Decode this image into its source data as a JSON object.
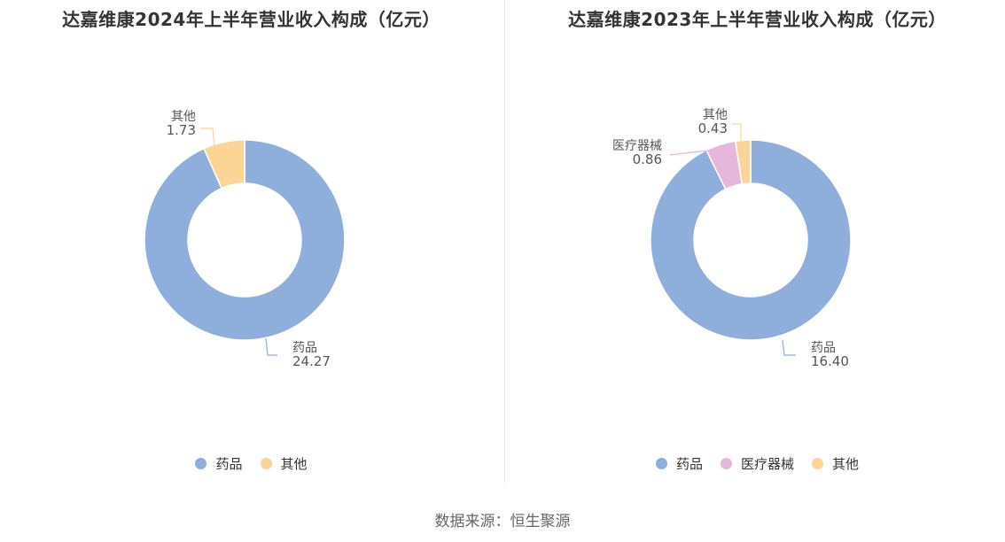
{
  "source_text": "数据来源：恒生聚源",
  "chart_data": [
    {
      "type": "pie",
      "donut": true,
      "title": "达嘉维康2024年上半年营业收入构成（亿元）",
      "unit": "亿元",
      "legend_position": "bottom",
      "slices": [
        {
          "label": "药品",
          "value": 24.27,
          "value_text": "24.27",
          "color": "#8eaedb"
        },
        {
          "label": "其他",
          "value": 1.73,
          "value_text": "1.73",
          "color": "#fbd595"
        }
      ]
    },
    {
      "type": "pie",
      "donut": true,
      "title": "达嘉维康2023年上半年营业收入构成（亿元）",
      "unit": "亿元",
      "legend_position": "bottom",
      "slices": [
        {
          "label": "药品",
          "value": 16.4,
          "value_text": "16.40",
          "color": "#8eaedb"
        },
        {
          "label": "医疗器械",
          "value": 0.86,
          "value_text": "0.86",
          "color": "#e5b8db"
        },
        {
          "label": "其他",
          "value": 0.43,
          "value_text": "0.43",
          "color": "#fbd595"
        }
      ]
    }
  ]
}
